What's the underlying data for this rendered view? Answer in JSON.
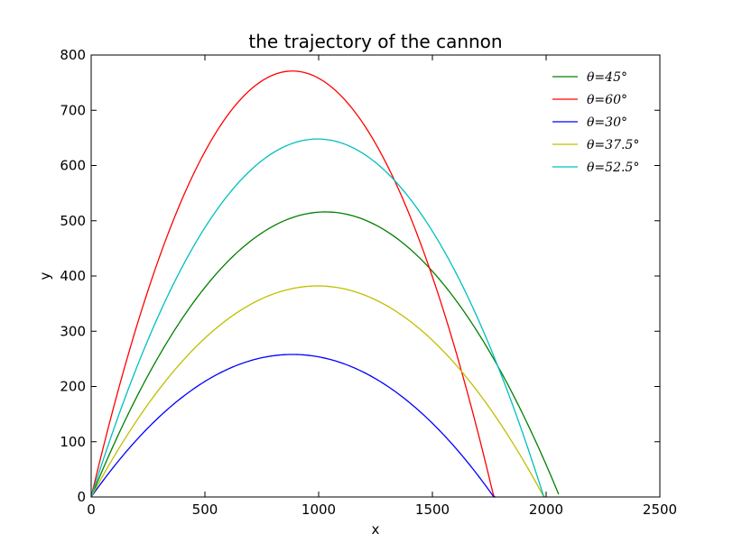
{
  "chart_data": {
    "type": "line",
    "title": "the trajectory of the cannon",
    "xlabel": "x",
    "ylabel": "y",
    "xlim": [
      0,
      2500
    ],
    "ylim": [
      0,
      800
    ],
    "xticks": [
      0,
      500,
      1000,
      1500,
      2000,
      2500
    ],
    "yticks": [
      0,
      100,
      200,
      300,
      400,
      500,
      600,
      700,
      800
    ],
    "grid": false,
    "legend_position": "top-right",
    "series": [
      {
        "name": "θ=45°",
        "color": "#008000",
        "peak_x": 1030,
        "peak_y": 516,
        "range_x": 2055
      },
      {
        "name": "θ=60°",
        "color": "#ff0000",
        "peak_x": 885,
        "peak_y": 771,
        "range_x": 1780
      },
      {
        "name": "θ=30°",
        "color": "#0000ff",
        "peak_x": 885,
        "peak_y": 258,
        "range_x": 1775
      },
      {
        "name": "θ=37.5°",
        "color": "#bfbf00",
        "peak_x": 995,
        "peak_y": 382,
        "range_x": 1995
      },
      {
        "name": "θ=52.5°",
        "color": "#00bfbf",
        "peak_x": 995,
        "peak_y": 648,
        "range_x": 1990
      }
    ]
  }
}
